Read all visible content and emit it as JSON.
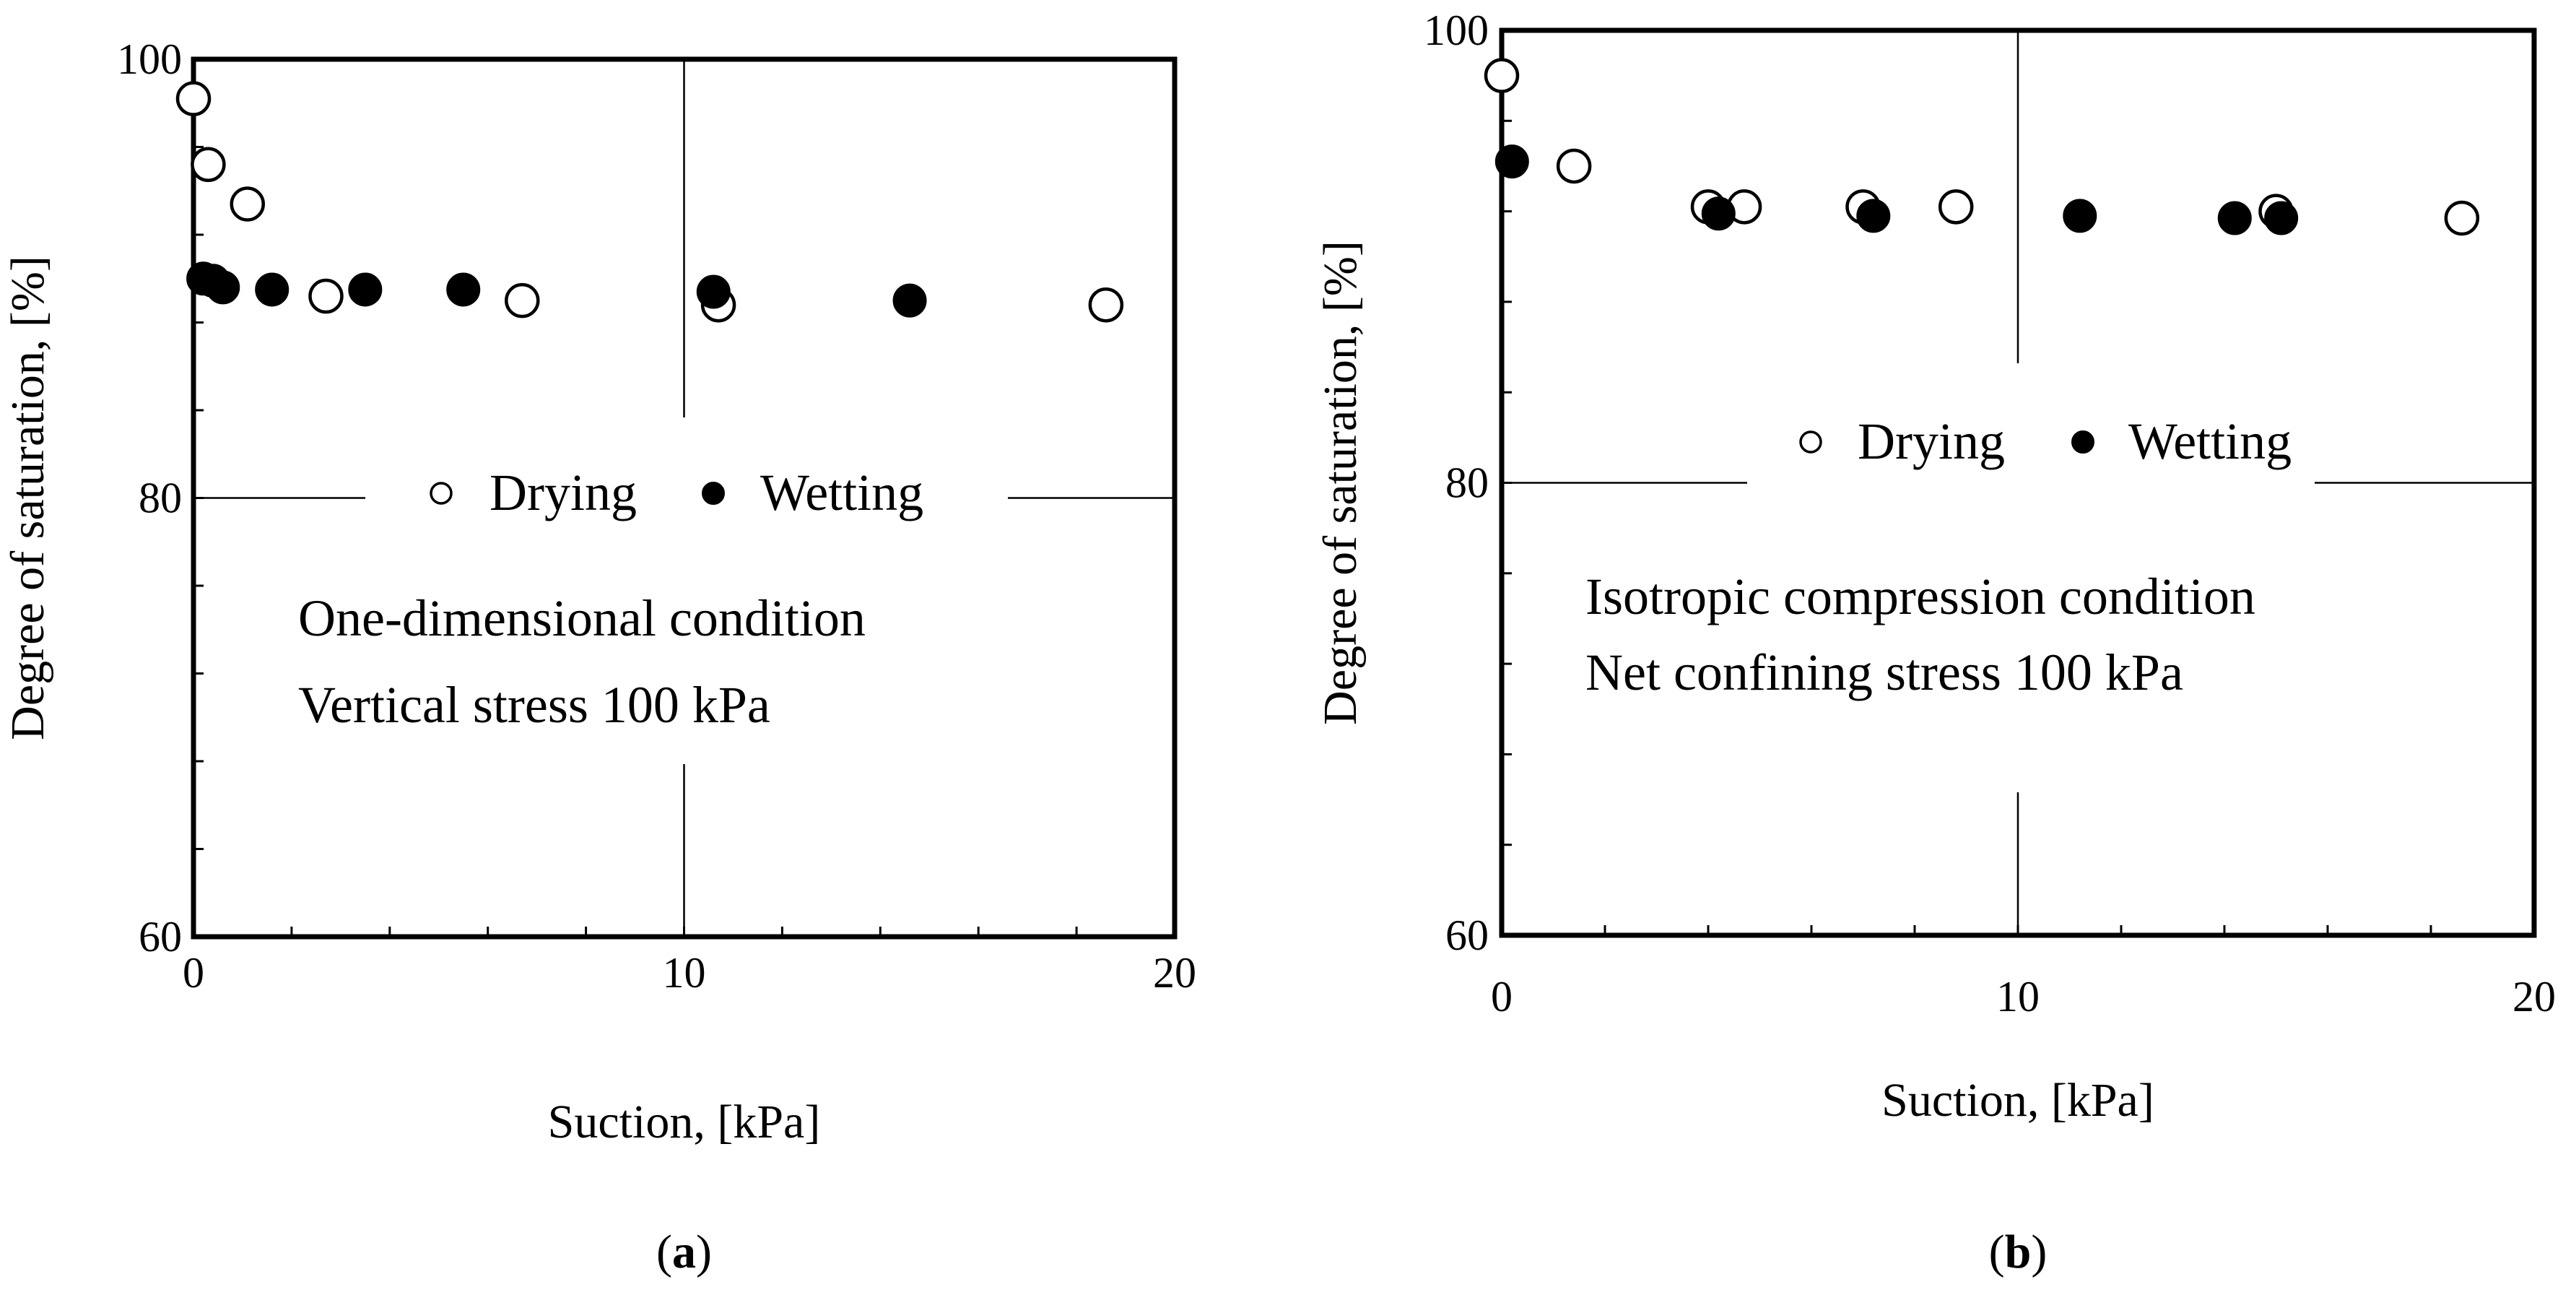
{
  "chart_data": [
    {
      "type": "scatter",
      "panel_label": "a",
      "xlabel": "Suction, [kPa]",
      "ylabel": "Degree of saturation, [%]",
      "xlim": [
        0,
        20
      ],
      "ylim": [
        60,
        100
      ],
      "x_ticks": [
        0,
        10,
        20
      ],
      "y_ticks": [
        60,
        80,
        100
      ],
      "grid": true,
      "legend": {
        "position": "center",
        "drying": "Drying",
        "wetting": "Wetting"
      },
      "annotation": [
        "One-dimensional condition",
        "Vertical stress 100 kPa"
      ],
      "series": [
        {
          "name": "Drying",
          "marker": "open-circle",
          "points": [
            [
              0.0,
              98.2
            ],
            [
              0.3,
              95.2
            ],
            [
              1.1,
              93.4
            ],
            [
              2.7,
              89.2
            ],
            [
              6.7,
              89.0
            ],
            [
              10.7,
              88.8
            ],
            [
              18.6,
              88.8
            ]
          ]
        },
        {
          "name": "Wetting",
          "marker": "filled-circle",
          "points": [
            [
              0.2,
              90.0
            ],
            [
              0.4,
              89.9
            ],
            [
              0.6,
              89.6
            ],
            [
              1.6,
              89.5
            ],
            [
              3.5,
              89.5
            ],
            [
              5.5,
              89.5
            ],
            [
              10.6,
              89.4
            ],
            [
              14.6,
              89.0
            ]
          ]
        }
      ]
    },
    {
      "type": "scatter",
      "panel_label": "b",
      "xlabel": "Suction, [kPa]",
      "ylabel": "Degree of saturation, [%]",
      "xlim": [
        0,
        20
      ],
      "ylim": [
        60,
        100
      ],
      "x_ticks": [
        0,
        10,
        20
      ],
      "y_ticks": [
        60,
        80,
        100
      ],
      "grid": true,
      "legend": {
        "position": "center",
        "drying": "Drying",
        "wetting": "Wetting"
      },
      "annotation": [
        "Isotropic compression condition",
        "Net confining stress 100 kPa"
      ],
      "series": [
        {
          "name": "Drying",
          "marker": "open-circle",
          "points": [
            [
              0.0,
              98.0
            ],
            [
              1.4,
              94.0
            ],
            [
              4.0,
              92.2
            ],
            [
              4.7,
              92.2
            ],
            [
              7.0,
              92.2
            ],
            [
              8.8,
              92.2
            ],
            [
              15.0,
              92.0
            ],
            [
              18.6,
              91.7
            ]
          ]
        },
        {
          "name": "Wetting",
          "marker": "filled-circle",
          "points": [
            [
              0.2,
              94.2
            ],
            [
              4.2,
              91.9
            ],
            [
              7.2,
              91.8
            ],
            [
              11.2,
              91.8
            ],
            [
              14.2,
              91.7
            ],
            [
              15.1,
              91.7
            ]
          ]
        }
      ]
    }
  ]
}
